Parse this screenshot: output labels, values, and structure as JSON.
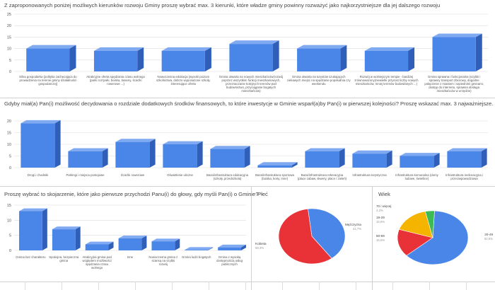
{
  "colors": {
    "bar_front": "#4a86e8",
    "bar_side": "#2f5fb8",
    "bar_top": "#7fa9f0",
    "grid": "#dcdcdc",
    "axis_text": "#555555"
  },
  "charts": {
    "c1": {
      "chart_data": {
        "type": "bar",
        "title": "Z zaproponowanych poniżej możliwych kierunków rozwoju Gminy proszę wybrać max. 3 kierunki, które władze gminy powinny rozważyć jako najkorzystniejsze dla jej dalszego rozwoju",
        "ylim": [
          0,
          25
        ],
        "yticks": [
          0,
          5,
          10,
          15,
          20,
          25
        ],
        "categories": [
          [
            "Silna gospodarka (polityka zachęcająca do",
            "prowadzenia na terenie gminy działalności",
            "gospodarczej)"
          ],
          [
            "Atrakcyjne oferta spędzania czasu wolnego",
            "(parki rozrywki, boiska, baseny, ścieżki",
            "rowerowe ...)"
          ],
          [
            "Nowoczesna edukacja (wysoki poziom",
            "szkolnictwa, dobrze wyposażone szkoły,",
            "interesujące oferta"
          ],
          [
            "Gmina otwarta na nowych mieszkańców(rozwój",
            "poprzez wszystkim funkcji mieszkaniowych,",
            "przeznaczanie kolejnych terenów pod",
            "budownictwo, przyciąganie bogatych",
            "mieszkańców)"
          ],
          [
            "Gmina otwarta na turystów szukających",
            "ciekawych miejsc na spędzanie popołudnia czy",
            "weekendu"
          ],
          [
            "Rozwój w wolniejszym tempie - bardziej",
            "zrównoważony(niewielki przyrost liczby nowych",
            "mieszkańców, mniej terenów budowlanych ...)"
          ],
          [
            "Gmina sprawna i funkcjonalna (szybki i",
            "sprawny transport zbiorowy, dogodne",
            "połączenie z miastem i sąsiednimi gminami,",
            "dostęp do internetu, sprawna obsługa",
            "mieszkańców w urzędzie)"
          ]
        ],
        "values": [
          10,
          9,
          9,
          12,
          10,
          9,
          15
        ]
      }
    },
    "c2": {
      "chart_data": {
        "type": "bar",
        "title": "Gdyby miał(a) Pan(i) możliwość decydowania o rozdziale dodatkowych środków finansowych, to które inwestycje w Gminie wsparł(a)by Pan(i) w pierwszej kolejności? Proszę wskazać max. 3 najważniejsze.",
        "ylim": [
          0,
          20
        ],
        "yticks": [
          0,
          5,
          10,
          15,
          20
        ],
        "categories": [
          [
            "Drogi i chodniki"
          ],
          [
            "Parkingi i miejsca postojowe"
          ],
          [
            "Ścieżki rowerowe"
          ],
          [
            "Oświetlenie uliczne"
          ],
          [
            "Baza/infrastruktura edukacyjna",
            "(szkoły, przedszkola)"
          ],
          [
            "Baza/infrastruktura sportowa",
            "(boiska, korty, inne)"
          ],
          [
            "Baza/infrastruktura rekreacyjna",
            "(place zabaw, skwery, place / zieleń)"
          ],
          [
            "Infrastruktura turystyczna"
          ],
          [
            "Infrastruktura komunalna (domy",
            "ludowe, świetlice)"
          ],
          [
            "Infrastruktura melioracyjna i",
            "przeciwpowodziowa"
          ]
        ],
        "values": [
          19,
          7,
          11,
          10,
          8,
          1,
          7,
          6,
          5,
          7
        ]
      }
    },
    "c3": {
      "chart_data": {
        "type": "bar",
        "title": "Proszę wybrać to skojarzenie, które jako pierwsze przychodzi Panu(i) do głowy, gdy myśli Pan(i) o Gminie?",
        "ylim": [
          0,
          15
        ],
        "yticks": [
          0,
          5,
          10,
          15
        ],
        "categories": [
          [
            "Gmina bez charakteru"
          ],
          [
            "Spokojna, bezpieczna",
            "gmina"
          ],
          [
            "Atrakcyjna gmina pod",
            "względem możliwości",
            "spędzania czasu",
            "wolnego"
          ],
          [
            "Inne"
          ],
          [
            "Nowoczesna gmina z",
            "szansą na szybki",
            "rozwój"
          ],
          [
            "Gmina ludzi bogatych"
          ],
          [
            "Gmina z wysoką",
            "dostępnością usług",
            "publicznych"
          ]
        ],
        "values": [
          13,
          7,
          2,
          4,
          3,
          0,
          1
        ]
      }
    },
    "c4": {
      "chart_data": {
        "type": "pie",
        "title": "Płeć",
        "slices": [
          {
            "label": "Mężczyzna",
            "pct": "41,7%",
            "value": 41.7,
            "color": "#4a86e8"
          },
          {
            "label": "Kobieta",
            "pct": "58,3%",
            "value": 58.3,
            "color": "#e83238"
          }
        ]
      }
    },
    "c5": {
      "chart_data": {
        "type": "pie",
        "title": "Wiek",
        "slices": [
          {
            "label": "20-49",
            "pct": "62,5%",
            "value": 62.5,
            "color": "#4a86e8"
          },
          {
            "label": "50-69",
            "pct": "16,6%",
            "value": 16.6,
            "color": "#e83238"
          },
          {
            "label": "19-29",
            "pct": "16,6%",
            "value": 16.6,
            "color": "#f4b400"
          },
          {
            "label": "70 i więcej",
            "pct": "4,2%",
            "value": 4.2,
            "color": "#3cba54"
          }
        ]
      }
    }
  }
}
